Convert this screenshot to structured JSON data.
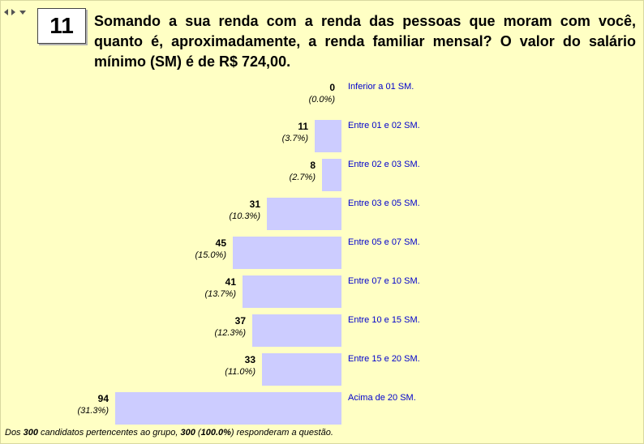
{
  "question": {
    "number": "11",
    "text": "Somando a sua renda com a renda das pessoas que moram com você, quanto é, aproximadamente, a renda familiar mensal? O valor do salário mínimo (SM) é de R$ 724,00."
  },
  "footer": {
    "prefix": "Dos ",
    "total": "300",
    "middle": " candidatos pertencentes ao grupo, ",
    "answered": "300",
    "open": " (",
    "percent": "100.0%",
    "suffix": ") responderam a questão."
  },
  "colors": {
    "bar": "#ccccff",
    "label": "#0000cc",
    "background": "#ffffc4"
  },
  "icons": [
    "arrow-left-icon",
    "arrow-right-icon",
    "dropdown-icon"
  ],
  "chart_data": {
    "type": "bar",
    "orientation": "horizontal",
    "categories": [
      "Inferior a 01 SM.",
      "Entre 01 e 02 SM.",
      "Entre 02 e 03 SM.",
      "Entre 03 e 05 SM.",
      "Entre 05 e 07 SM.",
      "Entre 07 e 10 SM.",
      "Entre 10 e 15 SM.",
      "Entre 15 e 20 SM.",
      "Acima de 20 SM."
    ],
    "values": [
      0,
      11,
      8,
      31,
      45,
      41,
      37,
      33,
      94
    ],
    "percents": [
      "(0.0%)",
      "(3.7%)",
      "(2.7%)",
      "(10.3%)",
      "(15.0%)",
      "(13.7%)",
      "(12.3%)",
      "(11.0%)",
      "(31.3%)"
    ],
    "max_value": 94,
    "bar_direction": "right-to-left"
  }
}
